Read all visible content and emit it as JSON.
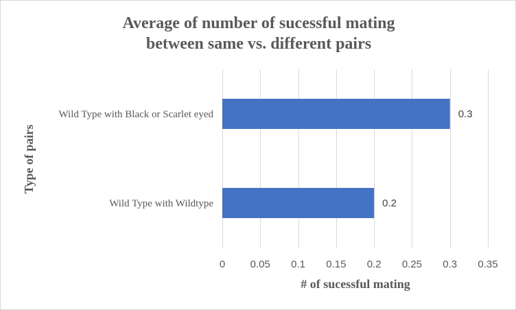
{
  "chart_data": {
    "type": "bar",
    "orientation": "horizontal",
    "title_lines": [
      "Average of number of sucessful mating",
      "between same vs. different pairs"
    ],
    "xlabel": "# of sucessful mating",
    "ylabel": "Type of pairs",
    "categories": [
      "Wild Type with Black or Scarlet eyed",
      "Wild Type with Wildtype"
    ],
    "values": [
      0.3,
      0.2
    ],
    "data_labels": [
      "0.3",
      "0.2"
    ],
    "xlim": [
      0,
      0.35
    ],
    "xticks": [
      0,
      0.05,
      0.1,
      0.15,
      0.2,
      0.25,
      0.3,
      0.35
    ],
    "xtick_labels": [
      "0",
      "0.05",
      "0.1",
      "0.15",
      "0.2",
      "0.25",
      "0.3",
      "0.35"
    ],
    "grid": true,
    "legend": "none",
    "bar_color": "#4472c4"
  }
}
